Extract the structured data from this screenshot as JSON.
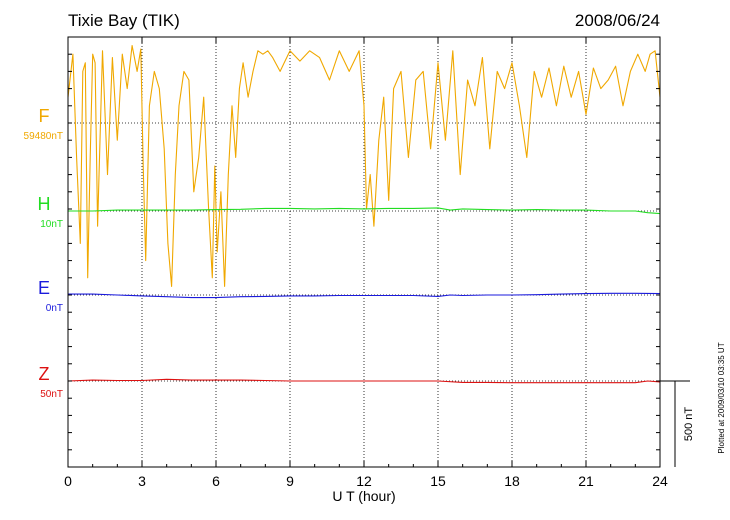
{
  "chart_data": {
    "type": "line",
    "title": "Tixie Bay (TIK)",
    "date": "2008/06/24",
    "xlabel": "U T (hour)",
    "xlim": [
      0,
      24
    ],
    "x_ticks": [
      0,
      3,
      6,
      9,
      12,
      15,
      18,
      21,
      24
    ],
    "scale_bar_label": "500 nT",
    "plotted_note": "Plotted at 2009/03/10 03:35 UT",
    "grid": true,
    "series": [
      {
        "name": "F",
        "baseline_label": "59480nT",
        "color": "#f0a800",
        "x": [
          0,
          0.2,
          0.35,
          0.5,
          0.6,
          0.7,
          0.8,
          0.9,
          1.0,
          1.1,
          1.2,
          1.4,
          1.6,
          1.8,
          2.0,
          2.2,
          2.4,
          2.6,
          2.8,
          2.95,
          3.05,
          3.15,
          3.3,
          3.5,
          3.7,
          3.9,
          4.05,
          4.2,
          4.35,
          4.5,
          4.7,
          4.9,
          5.1,
          5.3,
          5.5,
          5.7,
          5.85,
          5.95,
          6.05,
          6.2,
          6.35,
          6.5,
          6.65,
          6.8,
          6.95,
          7.1,
          7.3,
          7.5,
          7.7,
          7.9,
          8.1,
          8.3,
          8.6,
          9.0,
          9.4,
          9.8,
          10.2,
          10.6,
          11.0,
          11.4,
          11.8,
          12.0,
          12.1,
          12.25,
          12.4,
          12.6,
          12.8,
          13.0,
          13.2,
          13.5,
          13.8,
          14.1,
          14.4,
          14.7,
          15.0,
          15.3,
          15.6,
          15.9,
          16.2,
          16.5,
          16.8,
          17.1,
          17.4,
          17.7,
          18.0,
          18.3,
          18.6,
          18.9,
          19.2,
          19.5,
          19.8,
          20.1,
          20.4,
          20.7,
          21.0,
          21.3,
          21.6,
          21.9,
          22.2,
          22.5,
          22.8,
          23.1,
          23.4,
          23.6,
          23.8,
          24.0
        ],
        "y": [
          150,
          400,
          -200,
          -700,
          300,
          350,
          -900,
          -200,
          400,
          350,
          -600,
          420,
          -300,
          380,
          -100,
          400,
          200,
          450,
          300,
          430,
          -250,
          -800,
          100,
          300,
          200,
          -150,
          -700,
          -950,
          -300,
          100,
          300,
          250,
          -400,
          -200,
          150,
          -500,
          -900,
          -250,
          -750,
          -400,
          -950,
          -300,
          100,
          -200,
          200,
          350,
          150,
          300,
          420,
          400,
          420,
          380,
          300,
          420,
          360,
          420,
          380,
          250,
          420,
          300,
          420,
          100,
          -500,
          -300,
          -600,
          -100,
          150,
          -450,
          200,
          300,
          -200,
          250,
          300,
          -150,
          350,
          -100,
          420,
          -300,
          250,
          100,
          380,
          -150,
          300,
          200,
          350,
          100,
          -200,
          300,
          150,
          320,
          100,
          330,
          150,
          300,
          50,
          320,
          200,
          250,
          330,
          100,
          300,
          400,
          300,
          400,
          420,
          150
        ]
      },
      {
        "name": "H",
        "baseline_label": "10nT",
        "color": "#22dd22",
        "x": [
          0,
          1,
          2,
          3,
          4,
          5,
          6,
          7,
          8,
          9,
          10,
          11,
          12,
          13,
          14,
          15,
          15.5,
          16,
          17,
          18,
          19,
          20,
          21,
          22,
          23,
          23.5,
          24
        ],
        "y": [
          0,
          0,
          5,
          5,
          5,
          5,
          8,
          10,
          15,
          15,
          12,
          15,
          12,
          15,
          15,
          18,
          5,
          12,
          8,
          5,
          8,
          5,
          5,
          0,
          0,
          -10,
          -15
        ]
      },
      {
        "name": "E",
        "baseline_label": "0nT",
        "color": "#1a1adc",
        "x": [
          0,
          1,
          2,
          3,
          4,
          5,
          6,
          7,
          8,
          9,
          10,
          11,
          12,
          13,
          14,
          15,
          15.5,
          16,
          17,
          18,
          19,
          20,
          21,
          22,
          23,
          24
        ],
        "y": [
          5,
          5,
          0,
          -5,
          -10,
          -15,
          -15,
          -10,
          -8,
          -5,
          -5,
          -3,
          -3,
          -3,
          -3,
          -8,
          0,
          -3,
          0,
          0,
          2,
          5,
          8,
          10,
          10,
          8
        ]
      },
      {
        "name": "Z",
        "baseline_label": "50nT",
        "color": "#dd1111",
        "x": [
          0,
          1,
          2,
          3,
          4,
          5,
          6,
          7,
          8,
          9,
          10,
          11,
          12,
          13,
          14,
          15,
          16,
          17,
          18,
          19,
          20,
          21,
          22,
          23,
          23.5,
          24
        ],
        "y": [
          0,
          5,
          3,
          3,
          10,
          5,
          5,
          5,
          3,
          0,
          0,
          0,
          0,
          0,
          0,
          0,
          -8,
          -8,
          -10,
          -10,
          -10,
          -10,
          -10,
          -10,
          0,
          -5
        ]
      }
    ]
  }
}
